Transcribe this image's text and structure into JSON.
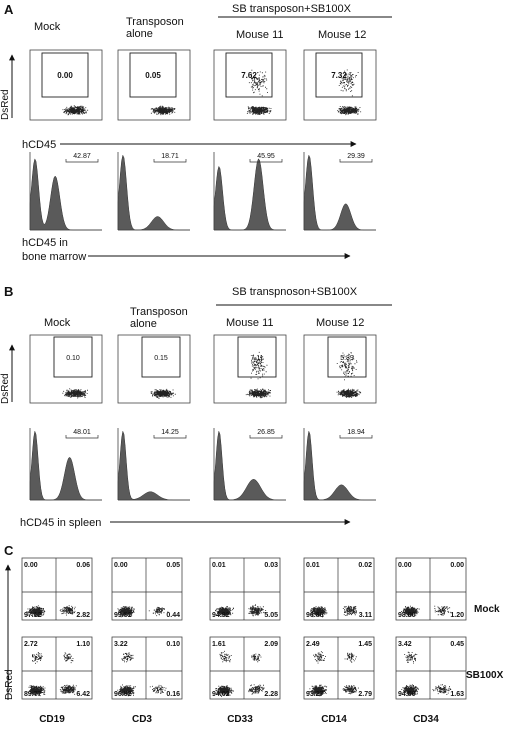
{
  "panels": {
    "A": {
      "letter": "A",
      "group_label": "SB transposon+SB100X",
      "columns": [
        "Mock",
        "Transposon alone",
        "Mouse 11",
        "Mouse 12"
      ],
      "y_axis_label": "DsRed",
      "x_axis_label": "hCD45",
      "gate_values": [
        "0.00",
        "0.05",
        "7.62",
        "7.32"
      ],
      "hist_values": [
        "42.87",
        "18.71",
        "45.95",
        "29.39"
      ],
      "hist_axis_label_lines": [
        "hCD45 in",
        "bone marrow"
      ]
    },
    "B": {
      "letter": "B",
      "group_label": "SB transpnoson+SB100X",
      "columns": [
        "Mock",
        "Transposon alone",
        "Mouse 11",
        "Mouse 12"
      ],
      "y_axis_label": "DsRed",
      "gate_values": [
        "0.10",
        "0.15",
        "7.11",
        "5.89"
      ],
      "hist_values": [
        "48.01",
        "14.25",
        "26.85",
        "18.94"
      ],
      "hist_axis_label": "hCD45 in spleen"
    },
    "C": {
      "letter": "C",
      "y_axis_label": "DsRed",
      "markers": [
        "CD19",
        "CD3",
        "CD33",
        "CD14",
        "CD34"
      ],
      "row_labels": [
        "Mock",
        "SB100X"
      ],
      "quadrants": [
        [
          [
            "0.00",
            "0.06",
            "97.12",
            "2.82"
          ],
          [
            "0.00",
            "0.05",
            "99.51",
            "0.44"
          ],
          [
            "0.01",
            "0.03",
            "94.92",
            "5.05"
          ],
          [
            "0.01",
            "0.02",
            "96.86",
            "3.11"
          ],
          [
            "0.00",
            "0.00",
            "98.80",
            "1.20"
          ]
        ],
        [
          [
            "2.72",
            "1.10",
            "89.77",
            "6.42"
          ],
          [
            "3.22",
            "0.10",
            "96.52",
            "0.16"
          ],
          [
            "1.61",
            "2.09",
            "94.02",
            "2.28"
          ],
          [
            "2.49",
            "1.45",
            "93.27",
            "2.79"
          ],
          [
            "3.42",
            "0.45",
            "94.50",
            "1.63"
          ]
        ]
      ]
    }
  }
}
